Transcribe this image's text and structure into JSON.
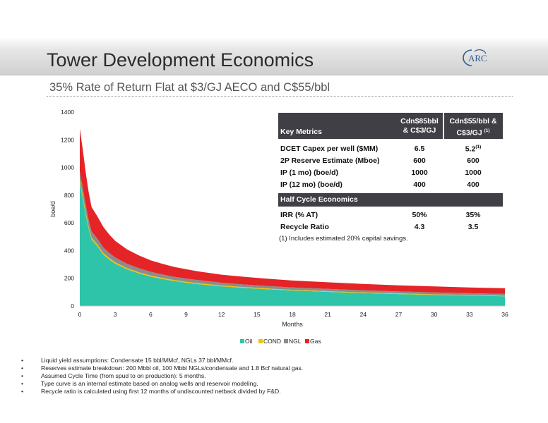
{
  "page": {
    "title": "Tower Development Economics",
    "subtitle": "35% Rate of Return Flat at $3/GJ AECO and C$55/bbl",
    "logo_text": "ARC"
  },
  "metrics_table": {
    "header": {
      "label": "Key Metrics",
      "col1": "Cdn$85bbl & C$3/GJ",
      "col2": "Cdn$55/bbl & C$3/GJ",
      "col2_note": "(1)"
    },
    "rows": [
      {
        "label": "DCET Capex per well ($MM)",
        "v1": "6.5",
        "v2": "5.2",
        "v2_note": "(1)"
      },
      {
        "label": "2P Reserve Estimate (Mboe)",
        "v1": "600",
        "v2": "600"
      },
      {
        "label": "IP (1 mo) (boe/d)",
        "v1": "1000",
        "v2": "1000"
      },
      {
        "label": "IP (12 mo) (boe/d)",
        "v1": "400",
        "v2": "400"
      }
    ],
    "subheader": "Half Cycle Economics",
    "rows2": [
      {
        "label": "IRR (% AT)",
        "v1": "50%",
        "v2": "35%"
      },
      {
        "label": "Recycle Ratio",
        "v1": "4.3",
        "v2": "3.5"
      }
    ],
    "footnote": "(1) Includes estimated 20% capital savings."
  },
  "bullets": [
    "Liquid yield assumptions: Condensate 15 bbl/MMcf, NGLs 37 bbl/MMcf.",
    "Reserves estimate breakdown: 200 Mbbl oil, 100 Mbbl NGLs/condensate and 1.8 Bcf natural gas.",
    "Assumed Cycle Time (from spud to on production): 5 months.",
    "Type curve is an internal estimate based on analog wells and reservoir modeling.",
    "Recycle ratio is calculated using first 12 months of undiscounted netback divided by F&D."
  ],
  "chart_data": {
    "type": "area",
    "stacked": true,
    "xlabel": "Months",
    "ylabel": "boe/d",
    "xlim": [
      0,
      36
    ],
    "ylim": [
      0,
      1400
    ],
    "x_ticks": [
      0,
      3,
      6,
      9,
      12,
      15,
      18,
      21,
      24,
      27,
      30,
      33,
      36
    ],
    "y_ticks": [
      0,
      200,
      400,
      600,
      800,
      1000,
      1200,
      1400
    ],
    "grid": false,
    "legend_position": "bottom",
    "x": [
      0,
      0.25,
      0.5,
      0.75,
      1,
      1.5,
      2,
      2.5,
      3,
      4,
      5,
      6,
      7,
      8,
      9,
      10,
      12,
      14,
      16,
      18,
      21,
      24,
      27,
      30,
      33,
      36
    ],
    "series": [
      {
        "name": "Oil",
        "color": "#2ec4a9",
        "values": [
          890,
          780,
          660,
          560,
          480,
          430,
          370,
          335,
          305,
          265,
          235,
          212,
          195,
          180,
          168,
          158,
          142,
          130,
          120,
          112,
          102,
          93,
          86,
          80,
          75,
          70
        ]
      },
      {
        "name": "COND",
        "color": "#f2c200",
        "values": [
          20,
          19,
          17,
          15,
          14,
          13,
          12,
          11,
          10,
          9,
          9,
          8,
          8,
          7,
          7,
          7,
          6,
          6,
          6,
          5,
          5,
          5,
          5,
          4,
          4,
          4
        ]
      },
      {
        "name": "NGL",
        "color": "#8c8c8c",
        "values": [
          60,
          56,
          52,
          48,
          45,
          42,
          40,
          37,
          35,
          31,
          29,
          27,
          25,
          24,
          23,
          22,
          20,
          19,
          18,
          17,
          16,
          15,
          14,
          14,
          13,
          13
        ]
      },
      {
        "name": "Gas",
        "color": "#e52427",
        "values": [
          310,
          275,
          235,
          200,
          175,
          160,
          148,
          132,
          120,
          104,
          92,
          83,
          76,
          71,
          67,
          63,
          58,
          55,
          52,
          50,
          48,
          46,
          44,
          43,
          42,
          41
        ]
      }
    ]
  }
}
